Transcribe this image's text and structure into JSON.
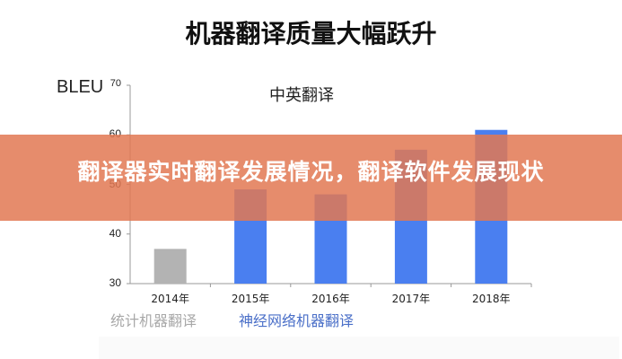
{
  "header": {
    "title": "机器翻译质量大幅跃升"
  },
  "banner": {
    "text": "翻译器实时翻译发展情况，翻译软件发展现状",
    "color": "#E2784F"
  },
  "chart_data": {
    "type": "bar",
    "title": "中英翻译",
    "xlabel": "",
    "ylabel": "BLEU",
    "ylim": [
      30,
      70
    ],
    "yticks": [
      30,
      40,
      50,
      60,
      70
    ],
    "categories": [
      "2014年",
      "2015年",
      "2016年",
      "2017年",
      "2018年"
    ],
    "series": [
      {
        "name": "统计机器翻译",
        "color": "#B3B3B3",
        "values": [
          37,
          null,
          null,
          null,
          null
        ]
      },
      {
        "name": "神经网络机器翻译",
        "color": "#4A7FF0",
        "values": [
          null,
          49,
          48,
          57,
          61
        ]
      }
    ],
    "grid": false,
    "legend_position": "bottom-left"
  },
  "legend": {
    "smt": "统计机器翻译",
    "nmt": "神经网络机器翻译"
  }
}
